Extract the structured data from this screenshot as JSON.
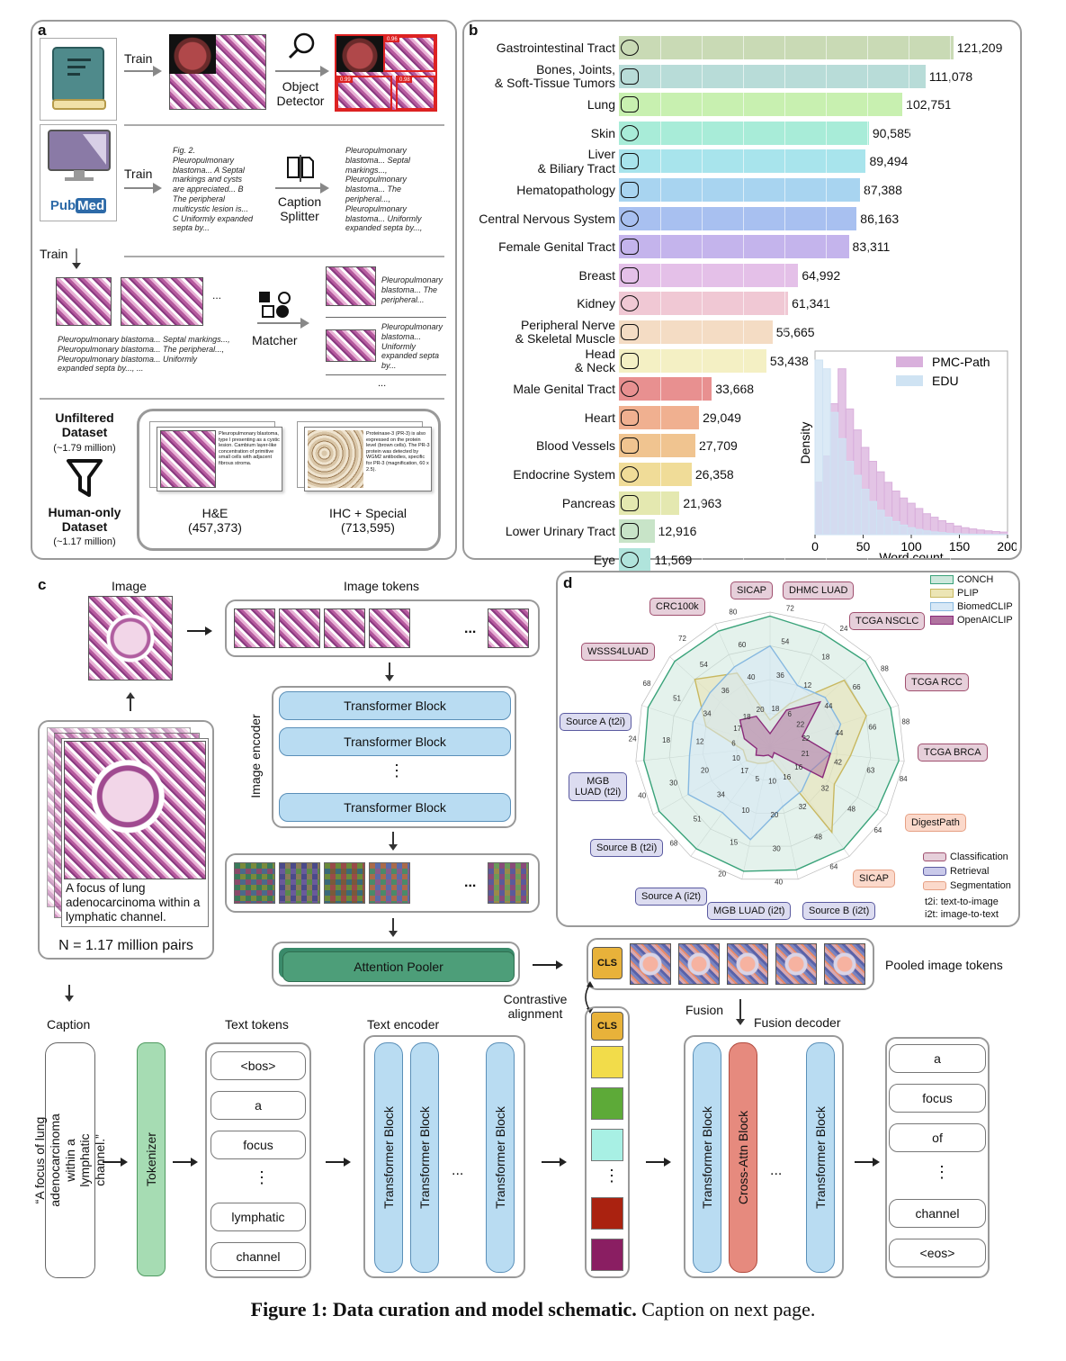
{
  "panel_a": {
    "letter": "a",
    "train1": "Train",
    "train2": "Train",
    "train3": "Train",
    "detector": "Object\nDetector",
    "splitter": "Caption\nSplitter",
    "matcher": "Matcher",
    "pubmed_a": "Pub",
    "pubmed_b": "Med",
    "fig_caption_text": "Fig. 2.\nPleuropulmonary\nblastoma... A Septal\nmarkings and cysts\nare appreciated... B\nThe peripheral\nmulticystic lesion is...\nC Uniformly expanded\nsepta by...",
    "split_captions": "Pleuropulmonary\nblastoma... Septal\nmarkings...,\nPleuropulmonary\nblastoma... The\nperipheral...,\nPleuropulmonary\nblastoma... Uniformly\nexpanded septa by...,",
    "bottom_captions": "Pleuropulmonary blastoma... Septal markings...,\nPleuropulmonary blastoma... The peripheral...,\nPleuropulmonary blastoma... Uniformly\nexpanded septa by..., ...",
    "match1": "Pleuropulmonary\nblastoma... The\nperipheral...",
    "match2": "Pleuropulmonary\nblastoma...\nUniformly\nexpanded septa\nby...",
    "ellipsis": "...",
    "det_scores": [
      "0.96",
      "0.99",
      "0.98"
    ],
    "unfiltered_title": "Unfiltered\nDataset",
    "unfiltered_count": "(~1.79 million)",
    "human_title": "Human-only\nDataset",
    "human_count": "(~1.17 million)",
    "he_label": "H&E",
    "he_count": "(457,373)",
    "ihc_label": "IHC + Special",
    "ihc_count": "(713,595)",
    "he_card": "Pleuropulmonary blastoma, type I presenting as a cystic lesion. Cambium layer-like concentration of primitive small cells with adjacent fibrous stroma.",
    "ihc_card": "Proteinase-3 (PR-3) is also expressed on the protein level (brown cells). The PR-3 protein was detected by WGM2 antibodies, specific for PR-3 (magnification, 60 x 2.5)."
  },
  "panel_b": {
    "letter": "b"
  },
  "chart_data": [
    {
      "type": "bar",
      "orientation": "horizontal",
      "categories": [
        "Gastrointestinal Tract",
        "Bones, Joints,\n& Soft-Tissue Tumors",
        "Lung",
        "Skin",
        "Liver\n& Biliary Tract",
        "Hematopathology",
        "Central Nervous System",
        "Female Genital Tract",
        "Breast",
        "Kidney",
        "Peripheral Nerve\n& Skeletal Muscle",
        "Head\n& Neck",
        "Male Genital Tract",
        "Heart",
        "Blood Vessels",
        "Endocrine System",
        "Pancreas",
        "Lower Urinary Tract",
        "Eye"
      ],
      "values": [
        121209,
        111078,
        102751,
        90585,
        89494,
        87388,
        86163,
        83311,
        64992,
        61341,
        55665,
        53438,
        33668,
        29049,
        27709,
        26358,
        21963,
        12916,
        11569
      ],
      "value_labels": [
        "121,209",
        "111,078",
        "102,751",
        "90,585",
        "89,494",
        "87,388",
        "86,163",
        "83,311",
        "64,992",
        "61,341",
        "55,665",
        "53,438",
        "33,668",
        "29,049",
        "27,709",
        "26,358",
        "21,963",
        "12,916",
        "11,569"
      ],
      "colors": [
        "#c9dab5",
        "#b8dcd8",
        "#c8f0b0",
        "#a8ecd8",
        "#a8e4ec",
        "#a8d4f0",
        "#a8c0f0",
        "#c4b4ec",
        "#e4c0e8",
        "#f0c8d4",
        "#f4dcc4",
        "#f4f0c4",
        "#e89090",
        "#f0b090",
        "#f0c490",
        "#f0dc98",
        "#e4e8b0",
        "#c8e4c8",
        "#b0e4dc"
      ],
      "icons": [
        "intestine-icon",
        "bone-icon",
        "lungs-icon",
        "skin-icon",
        "liver-icon",
        "blood-drop-icon",
        "brain-icon",
        "female-icon",
        "breast-icon",
        "kidney-icon",
        "nerve-icon",
        "head-neck-icon",
        "male-icon",
        "heart-icon",
        "blood-vessel-icon",
        "thyroid-icon",
        "pancreas-icon",
        "bladder-icon",
        "eye-icon"
      ],
      "xlim": [
        0,
        125000
      ],
      "grid": true
    },
    {
      "type": "histogram",
      "xlabel": "Word count",
      "ylabel": "Density",
      "xticks": [
        0,
        50,
        100,
        150,
        200
      ],
      "xlim": [
        0,
        200
      ],
      "series": [
        {
          "name": "PMC-Path",
          "color": "#d9b0dc",
          "bin_width": 8,
          "values": [
            0.3,
            0.45,
            0.75,
            0.95,
            0.72,
            0.6,
            0.5,
            0.42,
            0.36,
            0.3,
            0.25,
            0.21,
            0.18,
            0.15,
            0.12,
            0.1,
            0.08,
            0.065,
            0.05,
            0.04,
            0.033,
            0.027,
            0.022,
            0.018,
            0.015
          ]
        },
        {
          "name": "EDU",
          "color": "#cfe3f3",
          "bin_width": 8,
          "values": [
            1.0,
            0.95,
            0.7,
            0.55,
            0.42,
            0.34,
            0.26,
            0.19,
            0.14,
            0.1,
            0.075,
            0.055,
            0.04,
            0.03,
            0.022,
            0.016,
            0.012,
            0.008,
            0.006,
            0.004,
            0.003,
            0.002,
            0.0015,
            0.001,
            0.001
          ]
        }
      ],
      "legend": "top-right"
    },
    {
      "type": "radar",
      "axes": [
        "SICAP",
        "DHMC LUAD",
        "TCGA NSCLC",
        "TCGA RCC",
        "TCGA BRCA",
        "DigestPath",
        "SICAP",
        "Source B (i2t)",
        "MGB LUAD (i2t)",
        "Source A (i2t)",
        "Source B (t2i)",
        "MGB\nLUAD (t2i)",
        "Source A (t2i)",
        "WSSS4LUAD",
        "CRC100k"
      ],
      "axis_types": [
        "c",
        "c",
        "c",
        "c",
        "c",
        "s",
        "s",
        "r",
        "r",
        "r",
        "r",
        "r",
        "r",
        "c",
        "c"
      ],
      "outer_ticks": [
        "72",
        "24",
        "88",
        "88",
        "84",
        "64",
        "64",
        "40",
        "20",
        "68",
        "40",
        "24",
        "68",
        "72",
        "80"
      ],
      "mid_ticks": [
        "54",
        "18",
        "66",
        "66",
        "63",
        "48",
        "48",
        "30",
        "15",
        "51",
        "30",
        "18",
        "51",
        "54",
        "60"
      ],
      "inner_ticks": [
        "36",
        "12",
        "44",
        "44",
        "42",
        "32",
        "32",
        "20",
        "10",
        "34",
        "20",
        "12",
        "34",
        "36",
        "40"
      ],
      "core_ticks": [
        "18",
        "6",
        "22",
        "22",
        "21",
        "16",
        "16",
        "10",
        "5",
        "17",
        "10",
        "6",
        "17",
        "18",
        "20"
      ],
      "series": [
        {
          "name": "CONCH",
          "color": "#3aa37a",
          "fill": "#cde8dc",
          "values": [
            0.97,
            0.93,
            0.95,
            0.94,
            0.96,
            0.92,
            0.93,
            0.93,
            0.94,
            0.93,
            0.95,
            0.94,
            0.95,
            0.95,
            0.94
          ]
        },
        {
          "name": "PLIP",
          "color": "#c8b860",
          "fill": "#e9e2b0",
          "values": [
            0.2,
            0.35,
            0.74,
            0.75,
            0.6,
            0.55,
            0.78,
            0.1,
            0.12,
            0.15,
            0.2,
            0.2,
            0.5,
            0.75,
            0.6
          ]
        },
        {
          "name": "BiomedCLIP",
          "color": "#86b8e0",
          "fill": "#d5e7f5",
          "values": [
            0.75,
            0.5,
            0.55,
            0.55,
            0.45,
            0.35,
            0.4,
            0.45,
            0.7,
            0.6,
            0.7,
            0.6,
            0.6,
            0.6,
            0.65
          ]
        },
        {
          "name": "OpenAICLIP",
          "color": "#8a2a7a",
          "fill": "#b0739f",
          "values": [
            0.1,
            0.3,
            0.5,
            0.25,
            0.45,
            0.45,
            0.05,
            0.08,
            0.06,
            0.08,
            0.12,
            0.1,
            0.2,
            0.3,
            0.25
          ]
        }
      ]
    }
  ],
  "panel_c": {
    "letter": "c",
    "image_label": "Image",
    "image_tokens_label": "Image tokens",
    "image_encoder_label": "Image encoder",
    "transformer_block": "Transformer Block",
    "vdots": "⋮",
    "ellipsis": "...",
    "attention_pooler": "Attention Pooler",
    "caption_text": "A focus of lung adenocarcinoma within a lymphatic channel.",
    "pairs_count": "N = 1.17 million pairs",
    "pooled_label": "Pooled image tokens",
    "contrastive_label": "Contrastive\nalignment",
    "cls": "CLS",
    "caption_label": "Caption",
    "quoted_caption": "“A focus of lung adenocarcinoma within a lymphatic channel.”",
    "tokenizer": "Tokenizer",
    "text_tokens_label": "Text tokens",
    "text_tokens": [
      "<bos>",
      "a",
      "focus",
      "⋮",
      "lymphatic",
      "channel"
    ],
    "text_encoder_label": "Text encoder",
    "fusion_label": "Fusion",
    "fusion_decoder_label": "Fusion decoder",
    "cross_attn": "Cross-Attn Block",
    "output_tokens": [
      "a",
      "focus",
      "of",
      "⋮",
      "channel",
      "<eos>"
    ],
    "embedding_colors": [
      "#f2dc4a",
      "#5daa38",
      "#a8f0e4",
      "#aa2210",
      "#8a1e62"
    ],
    "cls_color": "#e8b23a"
  },
  "panel_d": {
    "letter": "d",
    "legend_items": [
      {
        "name": "CONCH",
        "color": "#cde8dc",
        "border": "#3aa37a"
      },
      {
        "name": "PLIP",
        "color": "#ece5b5",
        "border": "#c8b860"
      },
      {
        "name": "BiomedCLIP",
        "color": "#d7e8f6",
        "border": "#86b8e0"
      },
      {
        "name": "OpenAICLIP",
        "color": "#b0739f",
        "border": "#8a2a7a"
      }
    ],
    "task_legend": [
      {
        "name": "Classification",
        "color": "#e6cfda",
        "border": "#a0506f"
      },
      {
        "name": "Retrieval",
        "color": "#c9c9ea",
        "border": "#5a5aa0"
      },
      {
        "name": "Segmentation",
        "color": "#fbd9cb",
        "border": "#e6a084"
      }
    ],
    "abbrev1": "t2i: text-to-image",
    "abbrev2": "i2t: image-to-text"
  },
  "figure_caption": {
    "bold": "Figure 1: Data curation and model schematic.",
    "normal": " Caption on next page."
  }
}
